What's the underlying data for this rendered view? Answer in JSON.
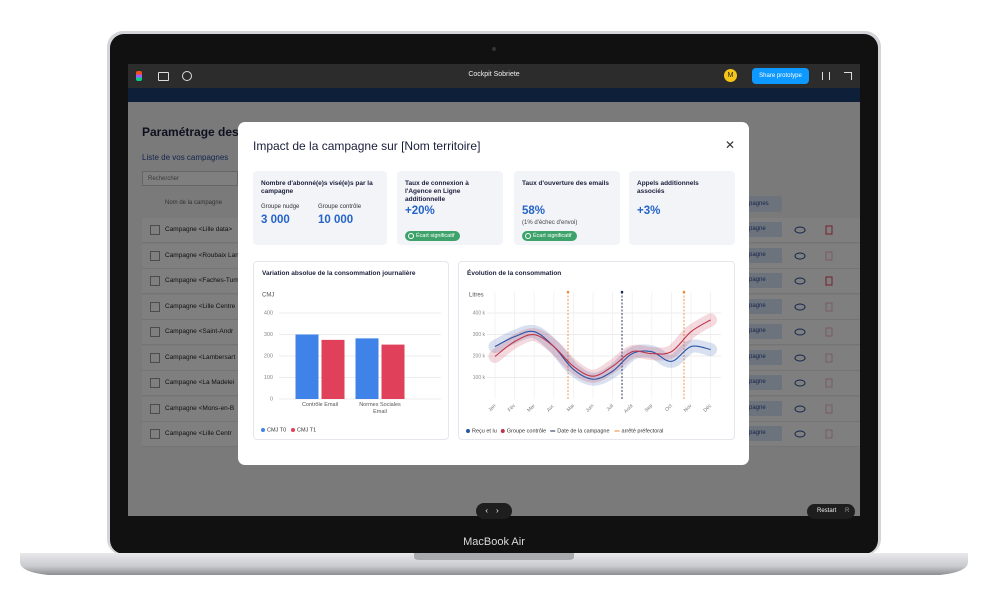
{
  "toolbar": {
    "file_name": "Cockpit Sobriete",
    "share": "Share prototype",
    "avatar": "M"
  },
  "app": {
    "heading": "Paramétrage des c",
    "list_title": "Liste de vos campagnes",
    "search_placeholder": "Rechercher",
    "column": "Nom de la campagne",
    "header_button": "mpagnes",
    "row_button": "mpagne",
    "rows": [
      "Campagne <Lille data>",
      "Campagne <Roubaix Lan",
      "Campagne <Faches-Tum",
      "Campagne <Lille Centre",
      "Campagne <Saint-Andr",
      "Campagne <Lambersart",
      "Campagne <La Madelei",
      "Campagne <Mons-en-B",
      "Campagne <Lille Centr"
    ]
  },
  "modal": {
    "title": "Impact de la campagne sur [Nom territoire]",
    "cards": [
      {
        "title": "Nombre d'abonné(e)s visé(e)s par la campagne",
        "groups": [
          {
            "label": "Groupe nudge",
            "value": "3 000"
          },
          {
            "label": "Groupe contrôle",
            "value": "10 000"
          }
        ]
      },
      {
        "title": "Taux de connexion à l'Agence en Ligne additionnelle",
        "value": "+20%",
        "badge": "Écart significatif"
      },
      {
        "title": "Taux d'ouverture des emails",
        "value": "58%",
        "note": "(1% d'échec d'envoi)",
        "badge": "Écart significatif"
      },
      {
        "title": "Appels additionnels associés",
        "value": "+3%"
      }
    ],
    "bar_chart": {
      "type": "bar",
      "title": "Variation absolue de la consommation journalière",
      "y_label": "CMJ",
      "categories": [
        "Contrôle Email",
        "Normes Sociales Email"
      ],
      "series": [
        {
          "name": "CMJ T0",
          "color": "#3f83e8",
          "values": [
            300,
            282
          ]
        },
        {
          "name": "CMJ T1",
          "color": "#e0405a",
          "values": [
            275,
            253
          ]
        }
      ],
      "ylim": [
        0,
        400
      ],
      "yticks": [
        0,
        100,
        200,
        300,
        400
      ],
      "grid": true
    },
    "line_chart": {
      "type": "line",
      "title": "Évolution de la consommation",
      "y_label": "Litres",
      "categories": [
        "Jan",
        "Fév",
        "Mar",
        "Avr.",
        "Mai",
        "Juin",
        "Juil",
        "Août",
        "Sep",
        "Oct",
        "Nov",
        "Déc"
      ],
      "series": [
        {
          "name": "Reçu et lu",
          "color": "#2b55a8",
          "values": [
            244000,
            290000,
            313000,
            244000,
            138000,
            92000,
            129000,
            211000,
            220000,
            175000,
            244000,
            230000
          ]
        },
        {
          "name": "Groupe contrôle",
          "color": "#c0344a",
          "values": [
            198000,
            267000,
            299000,
            244000,
            152000,
            106000,
            152000,
            220000,
            211000,
            220000,
            313000,
            368000
          ]
        }
      ],
      "markers": [
        {
          "name": "Date de la campagne",
          "color": "#1e2a55"
        },
        {
          "name": "arrêté préfectoral",
          "color": "#f08a3c"
        }
      ],
      "ylim": [
        0,
        400000
      ],
      "yticks": [
        {
          "value": 100000,
          "label": "100 k"
        },
        {
          "value": 200000,
          "label": "200 k"
        },
        {
          "value": 300000,
          "label": "300 k"
        },
        {
          "value": 400000,
          "label": "400 k"
        }
      ],
      "grid": true
    }
  },
  "player": {
    "restart": "Restart",
    "shortcut": "R"
  },
  "device": {
    "label": "MacBook Air"
  }
}
